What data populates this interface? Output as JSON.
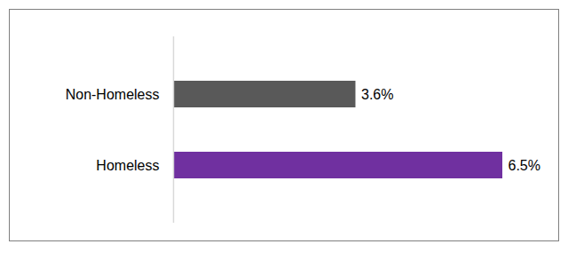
{
  "chart_data": {
    "type": "bar",
    "orientation": "horizontal",
    "categories": [
      "Non-Homeless",
      "Homeless"
    ],
    "values": [
      3.6,
      6.5
    ],
    "value_labels": [
      "3.6%",
      "6.5%"
    ],
    "colors": [
      "#595959",
      "#7030a0"
    ],
    "data_labels": true,
    "tick_labels": "y"
  }
}
